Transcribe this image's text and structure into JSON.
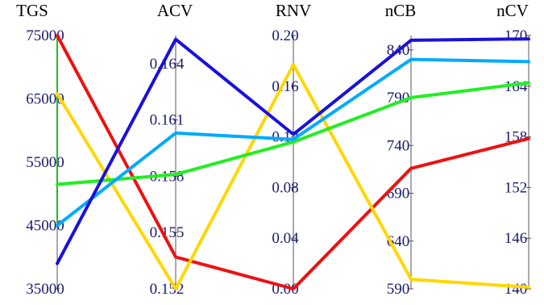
{
  "chart_data": {
    "type": "parallel-coordinates",
    "title": "",
    "grid": false,
    "legend": "none",
    "axes": [
      {
        "key": "TGS",
        "label": "TGS",
        "range": [
          35000,
          75000
        ],
        "ticks": [
          "35000",
          "45000",
          "55000",
          "65000",
          "75000"
        ]
      },
      {
        "key": "ACV",
        "label": "ACV",
        "range": [
          0.152,
          0.1655
        ],
        "ticks": [
          "0.152",
          "0.155",
          "0.158",
          "0.161",
          "0.164"
        ]
      },
      {
        "key": "RNV",
        "label": "RNV",
        "range": [
          0.0,
          0.2
        ],
        "ticks": [
          "0.00",
          "0.04",
          "0.08",
          "0.12",
          "0.16",
          "0.20"
        ]
      },
      {
        "key": "nCB",
        "label": "nCB",
        "range": [
          590,
          855
        ],
        "ticks": [
          "590",
          "640",
          "690",
          "740",
          "790",
          "840"
        ]
      },
      {
        "key": "nCV",
        "label": "nCV",
        "range": [
          140,
          170
        ],
        "ticks": [
          "140",
          "146",
          "152",
          "158",
          "164",
          "170"
        ]
      }
    ],
    "series": [
      {
        "color": "#ee1111",
        "values": [
          75000,
          0.1537,
          0.0,
          716,
          157.8
        ]
      },
      {
        "color": "#ffd700",
        "values": [
          65800,
          0.152,
          0.177,
          600,
          140.2
        ]
      },
      {
        "color": "#22ee22",
        "values": [
          51500,
          0.1581,
          0.116,
          790,
          164.4
        ]
      },
      {
        "color": "#00aaff",
        "values": [
          45000,
          0.1603,
          0.118,
          830,
          166.9
        ]
      },
      {
        "color": "#1a10dd",
        "values": [
          39000,
          0.1653,
          0.122,
          850,
          169.6
        ]
      }
    ]
  }
}
